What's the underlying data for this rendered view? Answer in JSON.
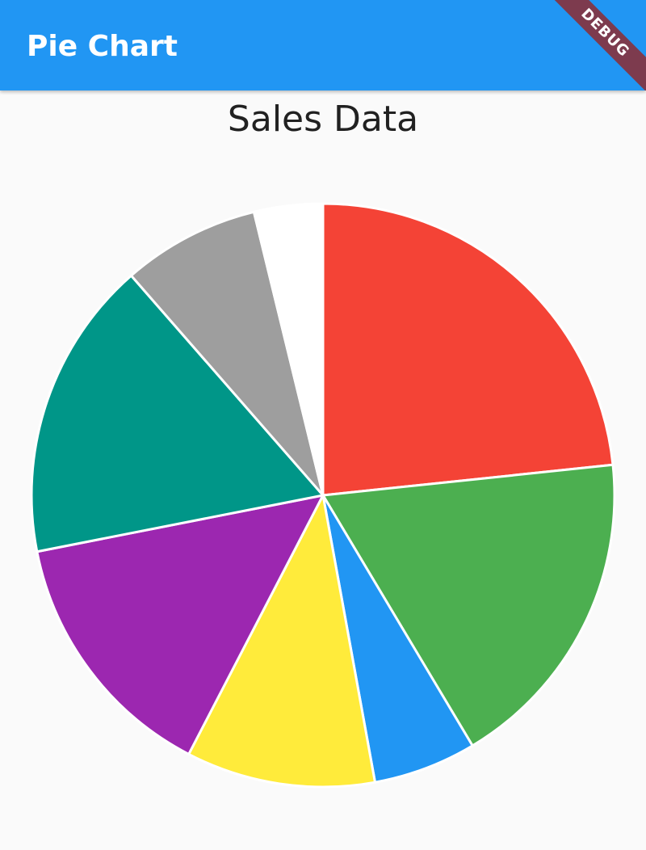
{
  "appbar": {
    "title": "Pie Chart",
    "debug_label": "DEBUG",
    "color": "#2196f3",
    "debug_color": "#7d3b4e"
  },
  "chart_data": {
    "type": "pie",
    "title": "Sales Data",
    "legend": "none",
    "start_angle_deg": 0,
    "direction": "clockwise",
    "categories": [
      "",
      "",
      "",
      "",
      "",
      "",
      "",
      "",
      ""
    ],
    "values": [
      24.5,
      19,
      6,
      11,
      15,
      17.5,
      8,
      4,
      0
    ],
    "colors": [
      "#f44336",
      "#4caf50",
      "#2196f3",
      "#ffeb3b",
      "#9c27b0",
      "#009688",
      "#9e9e9e",
      "#ffffff",
      "#ffffff"
    ]
  }
}
